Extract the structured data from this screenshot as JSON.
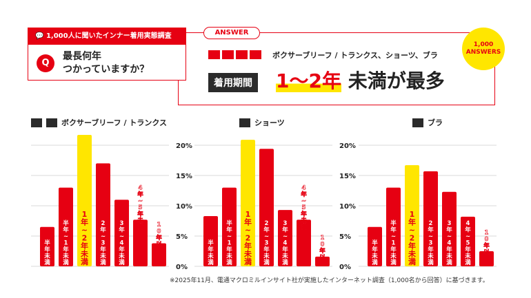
{
  "question": {
    "header": "1,000人に聞いたインナー着用実態調査",
    "q_mark": "Q",
    "text_line1": "最長何年",
    "text_line2": "つかっていますか？"
  },
  "answer": {
    "pill": "ANSWER",
    "badge_line1": "1,000",
    "badge_line2": "ANSWERS",
    "subtitle": "ボクサーブリーフ / トランクス、ショーツ、ブラ",
    "period_label": "着用期間",
    "headline_highlight": "1〜2年",
    "headline_rest": "未満が最多"
  },
  "footnote": "※2025年11月、電通マクロミルインサイト社が実施したインターネット調査（1,000名から回答）に基づきます。",
  "colors": {
    "red": "#e60012",
    "yellow": "#ffe600",
    "dark": "#2b2b2b"
  },
  "chart_data": [
    {
      "type": "bar",
      "title": "ボクサーブリーフ / トランクス",
      "categories": [
        "半年未満",
        "半年〜1年未満",
        "1年〜2年未満",
        "2年〜3年未満",
        "3年〜4年未満",
        "4年〜5年未満",
        "10年以上"
      ],
      "values": [
        6.5,
        13,
        21.7,
        17,
        11,
        7.7,
        3.8
      ],
      "highlight_index": 2,
      "ylim": [
        0,
        20
      ],
      "yticks": [
        "0%",
        "5%",
        "10%",
        "15%",
        "20%"
      ],
      "ylabel": "",
      "xlabel": ""
    },
    {
      "type": "bar",
      "title": "ショーツ",
      "categories": [
        "半年未満",
        "半年〜1年未満",
        "1年〜2年未満",
        "2年〜3年未満",
        "3年〜4年未満",
        "4年〜5年未満",
        "10年以上"
      ],
      "values": [
        8.3,
        13,
        20.9,
        19.4,
        9.3,
        7.7,
        1.6
      ],
      "highlight_index": 2,
      "ylim": [
        0,
        20
      ],
      "yticks": [
        "0%",
        "5%",
        "10%",
        "15%",
        "20%"
      ],
      "ylabel": "",
      "xlabel": ""
    },
    {
      "type": "bar",
      "title": "ブラ",
      "categories": [
        "半年未満",
        "半年〜1年未満",
        "1年〜2年未満",
        "2年〜3年未満",
        "3年〜4年未満",
        "4年〜5年未満",
        "10年以上"
      ],
      "values": [
        6.5,
        13,
        16.7,
        15.7,
        12.3,
        8.2,
        2.5
      ],
      "highlight_index": 2,
      "ylim": [
        0,
        20
      ],
      "yticks": [
        "0%",
        "5%",
        "10%",
        "15%",
        "20%"
      ],
      "ylabel": "",
      "xlabel": ""
    }
  ]
}
